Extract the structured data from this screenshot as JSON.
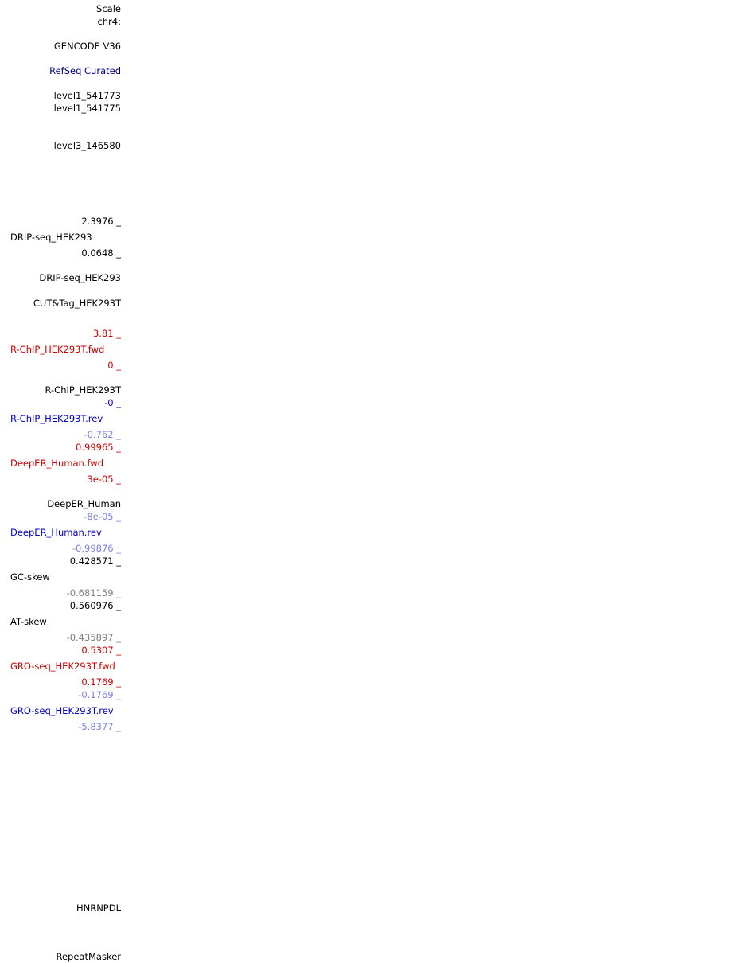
{
  "labels": {
    "scale": "Scale",
    "chr": "chr4:",
    "gencode": "GENCODE V36",
    "refseq": "RefSeq Curated",
    "lvl1a": "level1_541773",
    "lvl1b": "level1_541775",
    "lvl3": "level3_146580",
    "drip_max": "2.3976 _",
    "drip_name": "DRIP-seq_HEK293",
    "drip_min": "0.0648 _",
    "drip_peaks": "DRIP-seq_HEK293",
    "cuttag": "CUT&Tag_HEK293T",
    "rchip_fwd_max": "3.81 _",
    "rchip_fwd_name": "R-ChIP_HEK293T.fwd",
    "rchip_fwd_min": "0 _",
    "rchip_peaks": "R-ChIP_HEK293T",
    "rchip_rev_max": "-0 _",
    "rchip_rev_name": "R-ChIP_HEK293T.rev",
    "rchip_rev_min": "-0.762 _",
    "deeper_fwd_max": "0.99965 _",
    "deeper_fwd_name": "DeepER_Human.fwd",
    "deeper_fwd_min": "3e-05 _",
    "deeper_peaks": "DeepER_Human",
    "deeper_rev_max": "-8e-05 _",
    "deeper_rev_name": "DeepER_Human.rev",
    "deeper_rev_min": "-0.99876 _",
    "gc_max": "0.428571 _",
    "gc_name": "GC-skew",
    "gc_min": "-0.681159 _",
    "at_max": "0.560976 _",
    "at_name": "AT-skew",
    "at_min": "-0.435897 _",
    "gro_fwd_max": "0.5307 _",
    "gro_fwd_name": "GRO-seq_HEK293T.fwd",
    "gro_fwd_min": "0.1769 _",
    "gro_rev_max": "-0.1769 _",
    "gro_rev_name": "GRO-seq_HEK293T.rev",
    "gro_rev_min": "-5.8377 _",
    "hnrnpdl": "HNRNPDL",
    "repeatmasker": "RepeatMasker"
  },
  "colors": {
    "black": "#000000",
    "navy": "#000080",
    "blue": "#0000cc",
    "red": "#cc0000",
    "light_blue": "#7f7fe6",
    "gray": "#808080"
  }
}
